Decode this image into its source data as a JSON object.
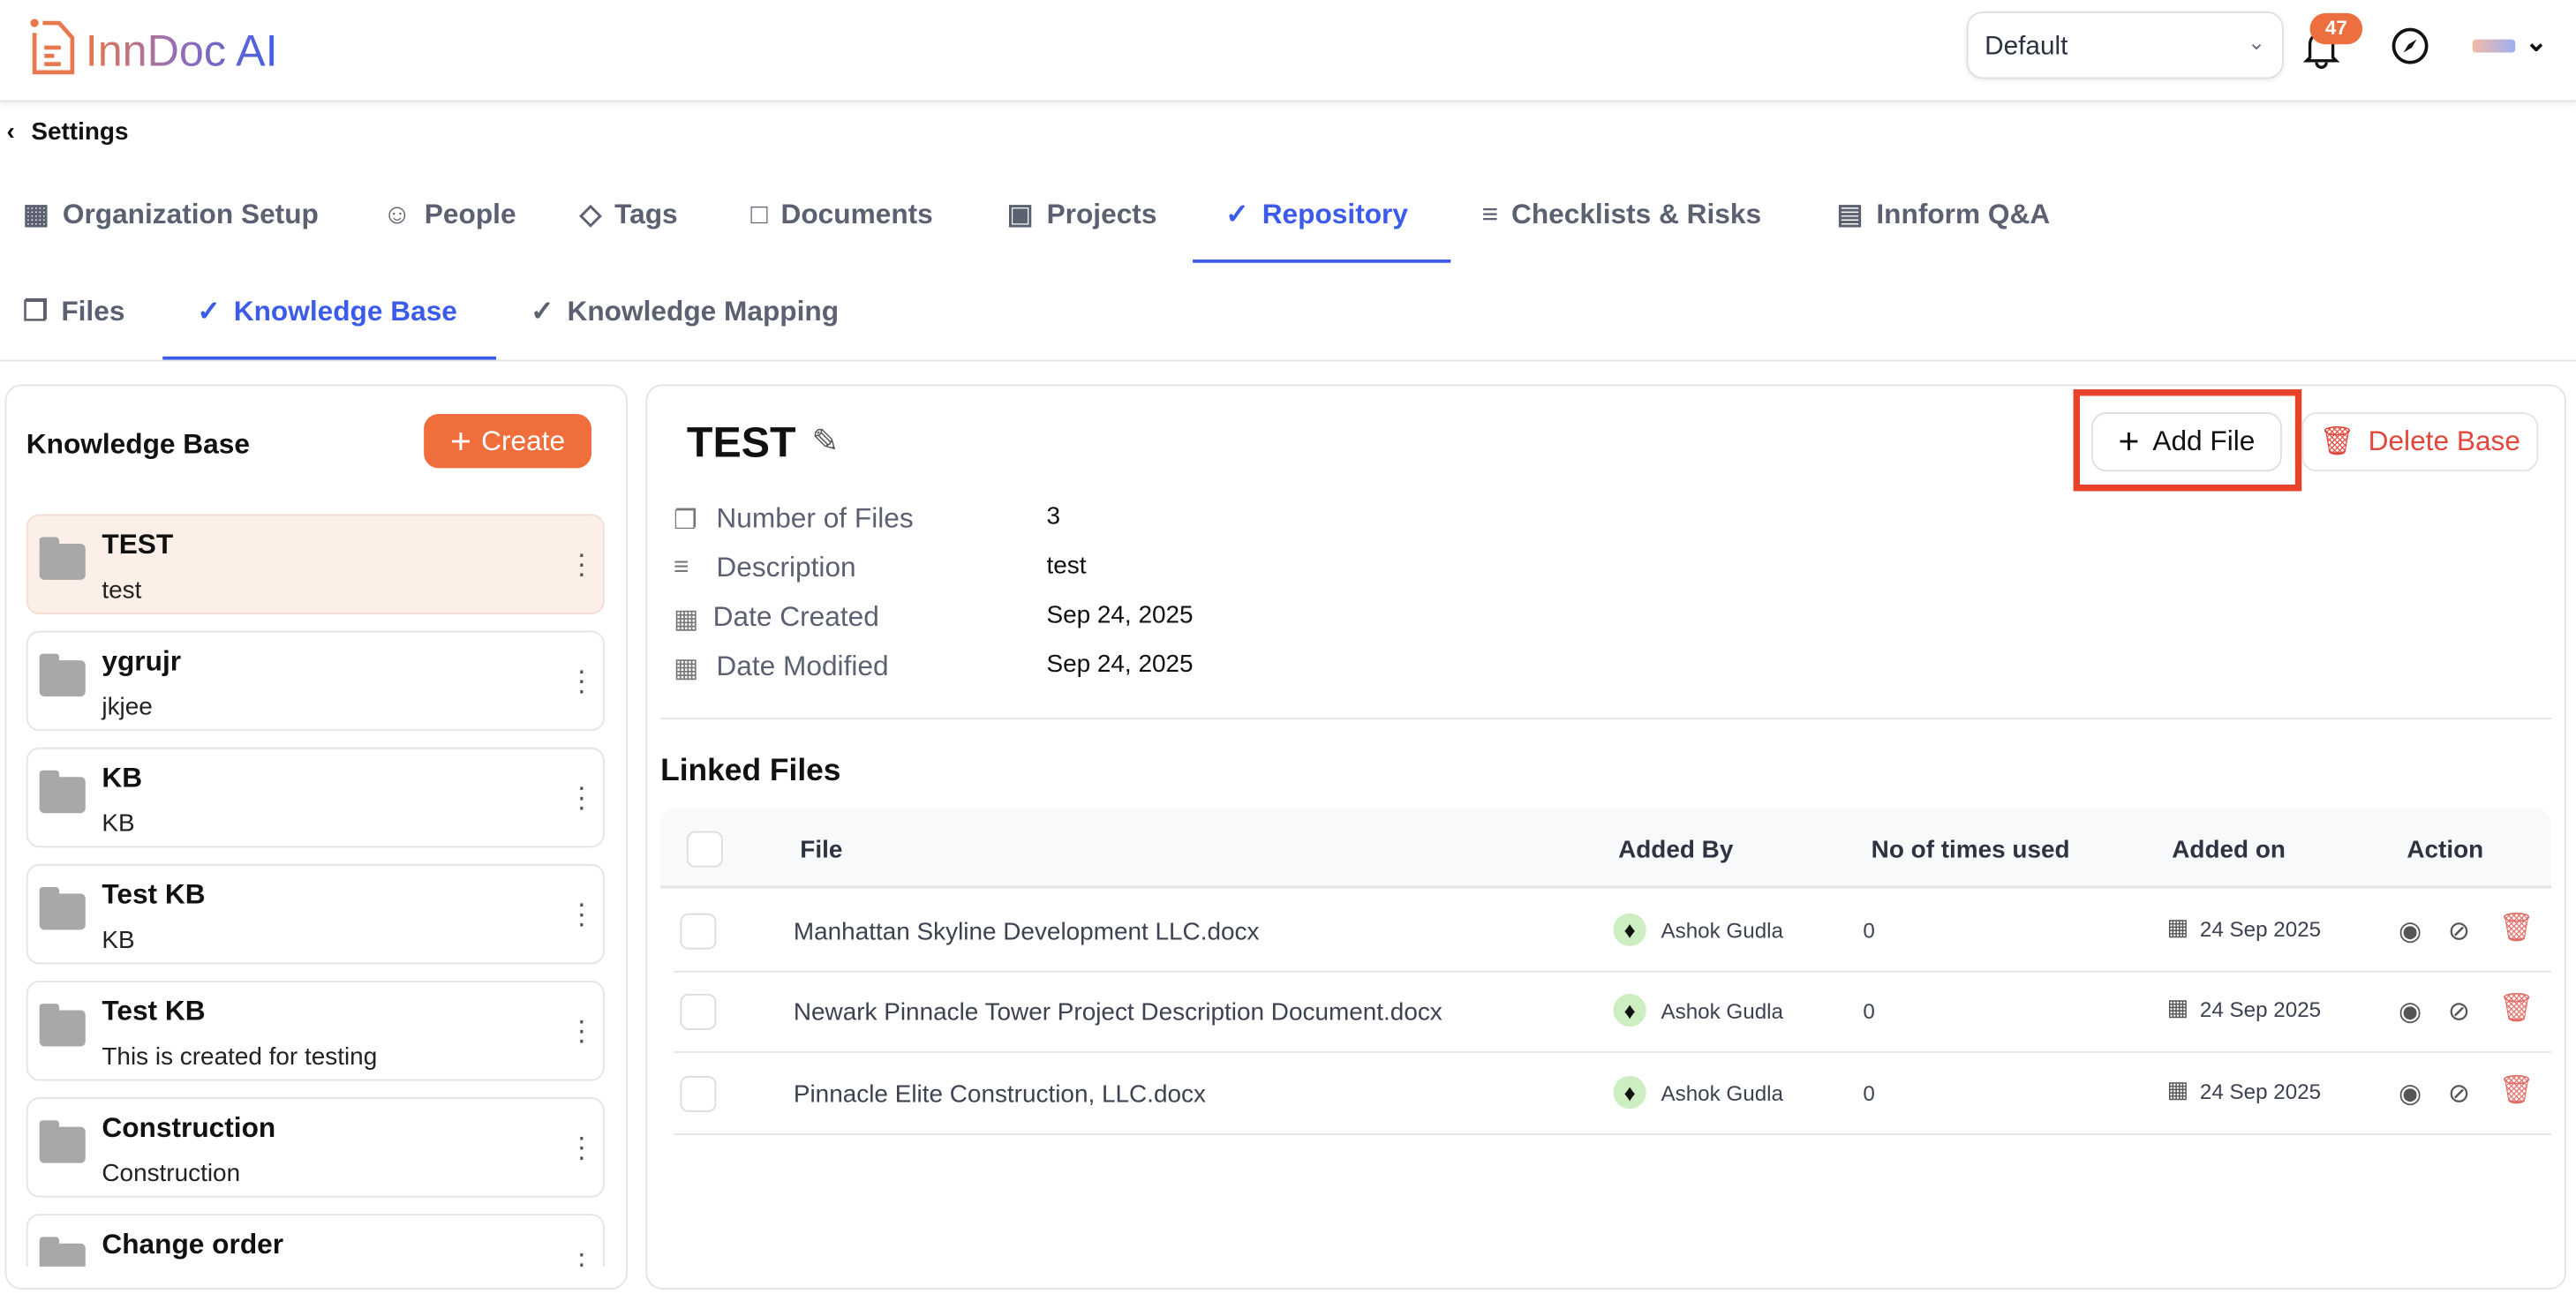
{
  "app": {
    "logo_text": "InnDoc AI",
    "workspace_select": "Default",
    "notification_count": "47",
    "brand_color": "#ef6e3b",
    "accent_color": "#3b5bea"
  },
  "breadcrumb": {
    "back_label": "Settings"
  },
  "main_tabs": [
    {
      "label": "Organization Setup",
      "icon": "building-icon"
    },
    {
      "label": "People",
      "icon": "people-icon"
    },
    {
      "label": "Tags",
      "icon": "tag-icon"
    },
    {
      "label": "Documents",
      "icon": "document-icon"
    },
    {
      "label": "Projects",
      "icon": "briefcase-icon"
    },
    {
      "label": "Repository",
      "icon": "book-check-icon",
      "active": true
    },
    {
      "label": "Checklists & Risks",
      "icon": "checklist-icon"
    },
    {
      "label": "Innform Q&A",
      "icon": "qa-icon"
    }
  ],
  "sub_tabs": [
    {
      "label": "Files",
      "icon": "files-icon"
    },
    {
      "label": "Knowledge Base",
      "icon": "book-check-icon",
      "active": true
    },
    {
      "label": "Knowledge Mapping",
      "icon": "book-check-icon"
    }
  ],
  "sidebar": {
    "title": "Knowledge Base",
    "create_label": "Create",
    "items": [
      {
        "title": "TEST",
        "desc": "test",
        "selected": true
      },
      {
        "title": "ygrujr",
        "desc": "jkjee"
      },
      {
        "title": "KB",
        "desc": "KB"
      },
      {
        "title": "Test KB",
        "desc": "KB"
      },
      {
        "title": "Test KB",
        "desc": "This is created for testing"
      },
      {
        "title": "Construction",
        "desc": "Construction"
      },
      {
        "title": "Change order",
        "desc": ""
      }
    ]
  },
  "detail": {
    "title": "TEST",
    "add_file_label": "Add File",
    "delete_label": "Delete Base",
    "meta": [
      {
        "label": "Number of Files",
        "value": "3"
      },
      {
        "label": "Description",
        "value": "test"
      },
      {
        "label": "Date Created",
        "value": "Sep 24, 2025"
      },
      {
        "label": "Date Modified",
        "value": "Sep 24, 2025"
      }
    ],
    "linked_title": "Linked Files",
    "columns": [
      "File",
      "Added By",
      "No of times used",
      "Added on",
      "Action"
    ],
    "rows": [
      {
        "file": "Manhattan Skyline Development LLC.docx",
        "added_by": "Ashok Gudla",
        "times_used": "0",
        "added_on": "24 Sep 2025"
      },
      {
        "file": "Newark Pinnacle Tower Project Description Document.docx",
        "added_by": "Ashok Gudla",
        "times_used": "0",
        "added_on": "24 Sep 2025"
      },
      {
        "file": "Pinnacle Elite Construction, LLC.docx",
        "added_by": "Ashok Gudla",
        "times_used": "0",
        "added_on": "24 Sep 2025"
      }
    ]
  }
}
